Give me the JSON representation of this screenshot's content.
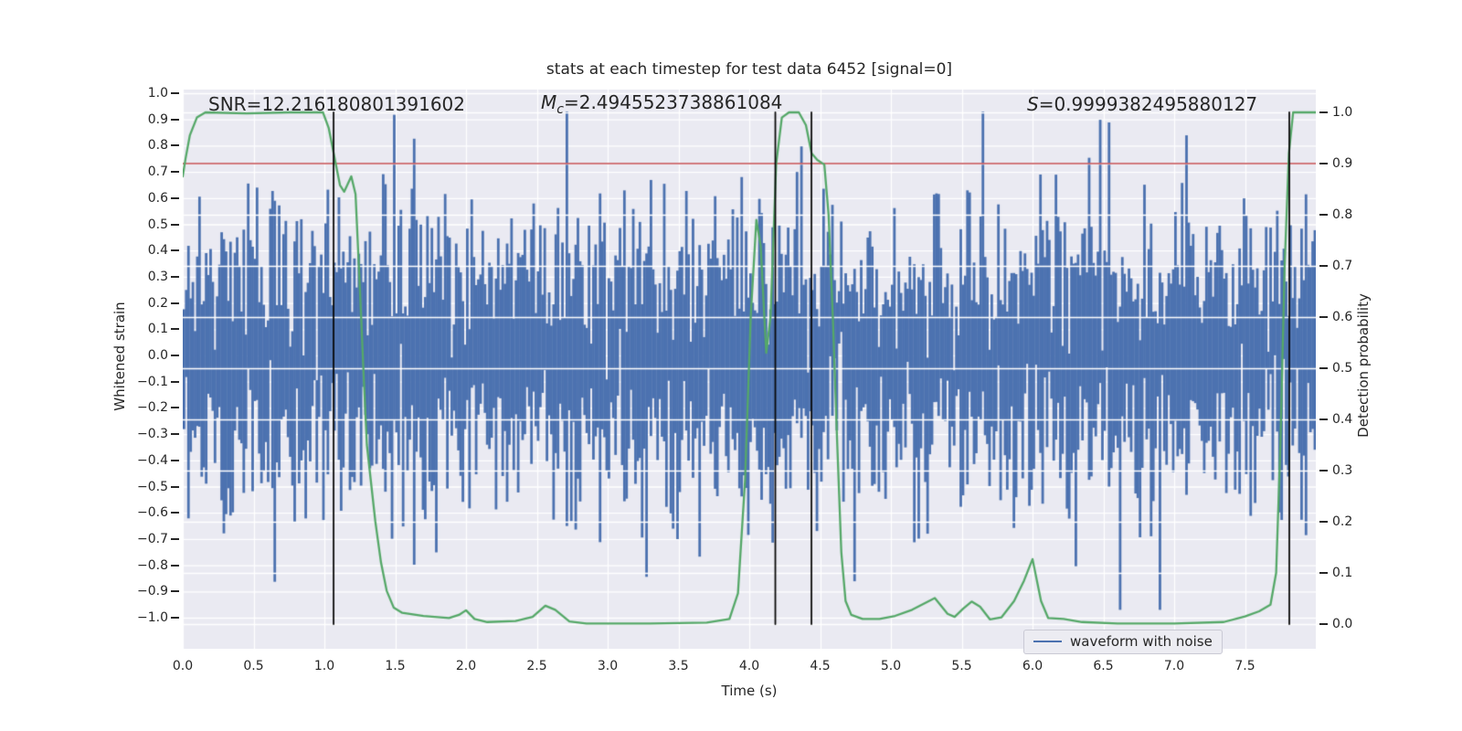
{
  "figure": {
    "title": "stats at each timestep for test data 6452 [signal=0]",
    "background": "#ffffff",
    "plot_background": "#eaeaf2",
    "grid_color": "#ffffff",
    "text_color": "#262626"
  },
  "axes": {
    "x_label": "Time (s)",
    "y_left_label": "Whitened strain",
    "y_right_label": "Detection probability",
    "x_tick_labels": [
      "0.0",
      "0.5",
      "1.0",
      "1.5",
      "2.0",
      "2.5",
      "3.0",
      "3.5",
      "4.0",
      "4.5",
      "5.0",
      "5.5",
      "6.0",
      "6.5",
      "7.0",
      "7.5"
    ],
    "y_left_tick_labels": [
      "1.0",
      "0.9",
      "0.8",
      "0.7",
      "0.6",
      "0.5",
      "0.4",
      "0.3",
      "0.2",
      "0.1",
      "0.0",
      "−0.1",
      "−0.2",
      "−0.3",
      "−0.4",
      "−0.5",
      "−0.6",
      "−0.7",
      "−0.8",
      "−0.9",
      "−1.0"
    ],
    "y_right_tick_labels": [
      "1.0",
      "0.9",
      "0.8",
      "0.7",
      "0.6",
      "0.5",
      "0.4",
      "0.3",
      "0.2",
      "0.1",
      "0.0"
    ]
  },
  "annotations": {
    "snr": {
      "name": "SNR",
      "value": "=12.216180801391602"
    },
    "mc": {
      "name": "M",
      "sub": "c",
      "value": "=2.4945523738861084"
    },
    "s": {
      "name": "S",
      "value": "=0.9999382495880127"
    }
  },
  "legend": {
    "label": "waveform with noise",
    "line_color": "#4c72b0"
  },
  "chart_data": {
    "type": "line",
    "title": "stats at each timestep for test data 6452 [signal=0]",
    "xlabel": "Time (s)",
    "ylabel_left": "Whitened strain",
    "ylabel_right": "Detection probability",
    "xlim": [
      0.0,
      8.0
    ],
    "ylim_left": [
      -1.118,
      1.014
    ],
    "ylim_right": [
      -0.048,
      1.045
    ],
    "x_ticks": [
      0.0,
      0.5,
      1.0,
      1.5,
      2.0,
      2.5,
      3.0,
      3.5,
      4.0,
      4.5,
      5.0,
      5.5,
      6.0,
      6.5,
      7.0,
      7.5
    ],
    "y_left_ticks": [
      1.0,
      0.9,
      0.8,
      0.7,
      0.6,
      0.5,
      0.4,
      0.3,
      0.2,
      0.1,
      0.0,
      -0.1,
      -0.2,
      -0.3,
      -0.4,
      -0.5,
      -0.6,
      -0.7,
      -0.8,
      -0.9,
      -1.0
    ],
    "y_right_ticks": [
      1.0,
      0.9,
      0.8,
      0.7,
      0.6,
      0.5,
      0.4,
      0.3,
      0.2,
      0.1,
      0.0
    ],
    "grid": true,
    "legend_position": "lower right",
    "series": [
      {
        "name": "waveform with noise",
        "axis": "left",
        "type": "minmax_noise_columns",
        "color": "#4c72b0",
        "columns": 512,
        "samples_per_column": 6,
        "sigma": 0.26,
        "spike_prob": 0.012,
        "seed": 1337,
        "typical_envelope": 0.35,
        "max_envelope": 0.93
      },
      {
        "name": "detection probability",
        "axis": "right",
        "type": "line",
        "color": "#55a868",
        "points": [
          [
            0.0,
            0.875
          ],
          [
            0.02,
            0.91
          ],
          [
            0.05,
            0.955
          ],
          [
            0.1,
            0.99
          ],
          [
            0.16,
            1.0
          ],
          [
            0.45,
            0.998
          ],
          [
            0.75,
            1.0
          ],
          [
            0.99,
            1.0
          ],
          [
            1.03,
            0.97
          ],
          [
            1.08,
            0.9
          ],
          [
            1.11,
            0.858
          ],
          [
            1.14,
            0.845
          ],
          [
            1.19,
            0.875
          ],
          [
            1.22,
            0.84
          ],
          [
            1.25,
            0.66
          ],
          [
            1.28,
            0.47
          ],
          [
            1.3,
            0.35
          ],
          [
            1.32,
            0.3
          ],
          [
            1.36,
            0.2
          ],
          [
            1.4,
            0.12
          ],
          [
            1.44,
            0.065
          ],
          [
            1.49,
            0.032
          ],
          [
            1.55,
            0.022
          ],
          [
            1.7,
            0.016
          ],
          [
            1.88,
            0.012
          ],
          [
            1.95,
            0.018
          ],
          [
            2.0,
            0.027
          ],
          [
            2.06,
            0.01
          ],
          [
            2.15,
            0.004
          ],
          [
            2.35,
            0.006
          ],
          [
            2.47,
            0.014
          ],
          [
            2.56,
            0.036
          ],
          [
            2.63,
            0.028
          ],
          [
            2.73,
            0.005
          ],
          [
            2.85,
            0.001
          ],
          [
            3.3,
            0.001
          ],
          [
            3.7,
            0.003
          ],
          [
            3.86,
            0.01
          ],
          [
            3.92,
            0.06
          ],
          [
            3.97,
            0.28
          ],
          [
            4.01,
            0.6
          ],
          [
            4.05,
            0.79
          ],
          [
            4.08,
            0.74
          ],
          [
            4.12,
            0.53
          ],
          [
            4.15,
            0.6
          ],
          [
            4.19,
            0.9
          ],
          [
            4.23,
            0.99
          ],
          [
            4.28,
            1.0
          ],
          [
            4.35,
            1.0
          ],
          [
            4.4,
            0.975
          ],
          [
            4.44,
            0.92
          ],
          [
            4.48,
            0.907
          ],
          [
            4.53,
            0.898
          ],
          [
            4.56,
            0.8
          ],
          [
            4.59,
            0.6
          ],
          [
            4.62,
            0.36
          ],
          [
            4.65,
            0.14
          ],
          [
            4.68,
            0.045
          ],
          [
            4.72,
            0.018
          ],
          [
            4.8,
            0.01
          ],
          [
            4.92,
            0.01
          ],
          [
            5.03,
            0.016
          ],
          [
            5.15,
            0.028
          ],
          [
            5.31,
            0.051
          ],
          [
            5.4,
            0.02
          ],
          [
            5.45,
            0.014
          ],
          [
            5.51,
            0.03
          ],
          [
            5.57,
            0.044
          ],
          [
            5.63,
            0.034
          ],
          [
            5.7,
            0.009
          ],
          [
            5.78,
            0.013
          ],
          [
            5.87,
            0.045
          ],
          [
            5.94,
            0.085
          ],
          [
            6.0,
            0.127
          ],
          [
            6.06,
            0.045
          ],
          [
            6.11,
            0.012
          ],
          [
            6.22,
            0.01
          ],
          [
            6.35,
            0.004
          ],
          [
            6.6,
            0.001
          ],
          [
            7.0,
            0.001
          ],
          [
            7.35,
            0.004
          ],
          [
            7.5,
            0.015
          ],
          [
            7.6,
            0.025
          ],
          [
            7.68,
            0.038
          ],
          [
            7.72,
            0.1
          ],
          [
            7.75,
            0.35
          ],
          [
            7.78,
            0.7
          ],
          [
            7.81,
            0.92
          ],
          [
            7.84,
            1.0
          ],
          [
            8.0,
            1.0
          ]
        ]
      },
      {
        "name": "detection threshold",
        "axis": "right",
        "type": "hline",
        "color": "#c44e52",
        "y": 0.9
      },
      {
        "name": "event markers",
        "axis": "right",
        "type": "vlines",
        "color": "#0a0a0a",
        "x": [
          1.065,
          4.184,
          4.439,
          7.813
        ],
        "ymin": 0.0,
        "ymax": 1.0
      }
    ]
  }
}
